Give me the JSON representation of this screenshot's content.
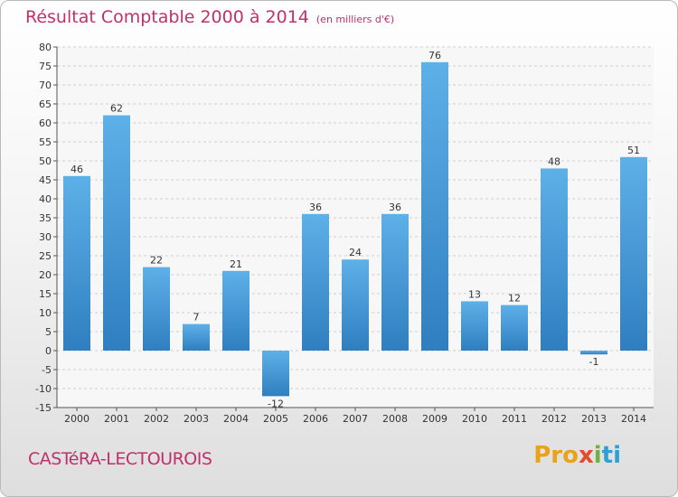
{
  "header": {
    "title": "Résultat Comptable 2000 à 2014",
    "subtitle": "(en milliers d'€)"
  },
  "footer": {
    "commune": "CASTéRA-LECTOUROIS",
    "brand": [
      "Pro",
      "x",
      "i",
      "ti"
    ]
  },
  "colors": {
    "bar_light": "#5eb0e8",
    "bar_dark": "#2f7fc0",
    "title": "#c0306a"
  },
  "chart_data": {
    "type": "bar",
    "title": "Résultat Comptable 2000 à 2014",
    "subtitle": "(en milliers d'€)",
    "categories": [
      "2000",
      "2001",
      "2002",
      "2003",
      "2004",
      "2005",
      "2006",
      "2007",
      "2008",
      "2009",
      "2010",
      "2011",
      "2012",
      "2013",
      "2014"
    ],
    "values": [
      46,
      62,
      22,
      7,
      21,
      -12,
      36,
      24,
      36,
      76,
      13,
      12,
      48,
      -1,
      51
    ],
    "ylim": [
      -15,
      80
    ],
    "yticks": [
      -15,
      -10,
      -5,
      0,
      5,
      10,
      15,
      20,
      25,
      30,
      35,
      40,
      45,
      50,
      55,
      60,
      65,
      70,
      75,
      80
    ],
    "grid": true,
    "legend": "none"
  }
}
